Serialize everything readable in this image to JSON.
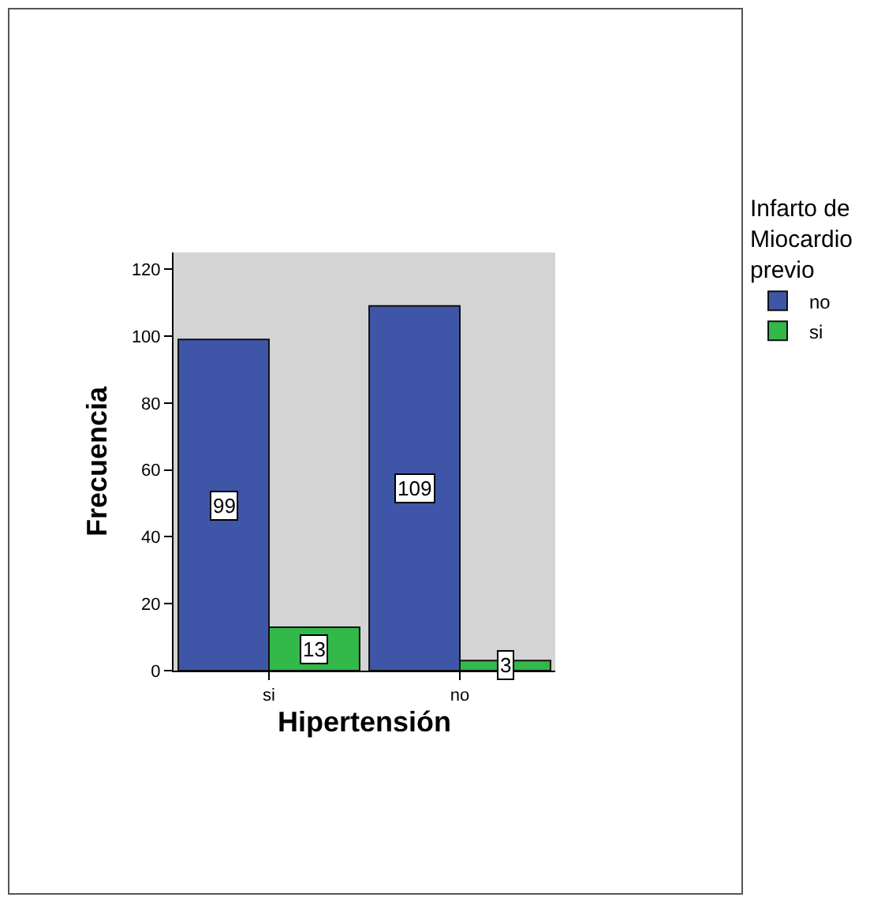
{
  "chart_data": {
    "type": "bar",
    "xlabel": "Hipertensión",
    "ylabel": "Frecuencia",
    "legend_title": "Infarto de Miocardio previo",
    "categories": [
      "si",
      "no"
    ],
    "series": [
      {
        "name": "no",
        "color": "#3f56a8",
        "values": [
          99,
          109
        ]
      },
      {
        "name": "si",
        "color": "#33b84a",
        "values": [
          13,
          3
        ]
      }
    ],
    "ylim": [
      0,
      125
    ],
    "yticks": [
      0,
      20,
      40,
      60,
      80,
      100,
      120
    ],
    "grid": false,
    "legend": "right",
    "data_labels": true
  }
}
